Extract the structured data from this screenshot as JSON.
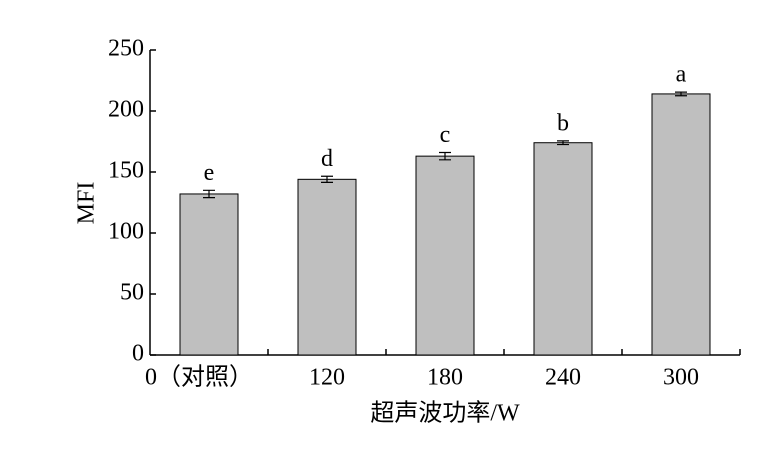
{
  "chart_data": {
    "type": "bar",
    "x_label": "超声波功率/W",
    "y_label": "MFI",
    "categories": [
      "0（对照）",
      "120",
      "180",
      "240",
      "300"
    ],
    "values": [
      132,
      144,
      163,
      174,
      214
    ],
    "errors": [
      3,
      2.5,
      3,
      1.5,
      1.5
    ],
    "significance_letters": [
      "e",
      "d",
      "c",
      "b",
      "a"
    ],
    "color": "#bfbfbf",
    "ylim": [
      0,
      250
    ],
    "yticks": [
      0,
      50,
      100,
      150,
      200,
      250
    ],
    "grid": false
  }
}
